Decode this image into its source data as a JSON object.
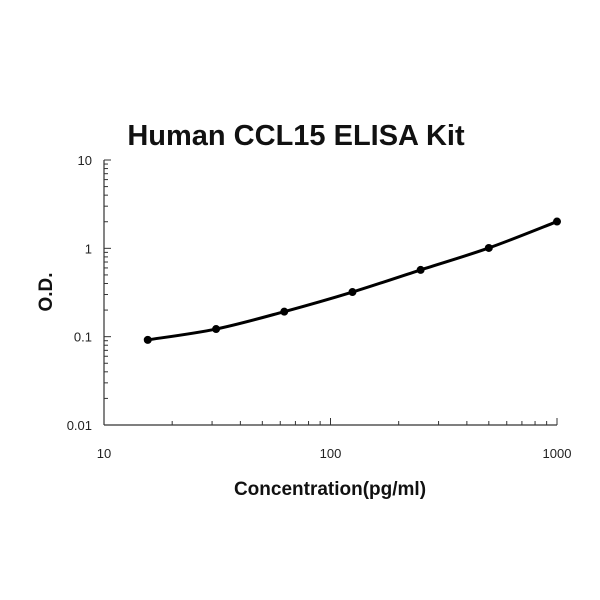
{
  "chart_data": {
    "type": "line",
    "title": "Human CCL15 ELISA Kit",
    "xlabel": "Concentration(pg/ml)",
    "ylabel": "O.D.",
    "x_scale": "log",
    "y_scale": "log",
    "xlim": [
      10,
      1000
    ],
    "ylim": [
      0.01,
      10
    ],
    "x_ticks": [
      "10",
      "100",
      "1000"
    ],
    "y_ticks": [
      "0.01",
      "0.1",
      "1",
      "10"
    ],
    "grid": false,
    "legend": "none",
    "series": [
      {
        "x": [
          15.6,
          31.25,
          62.5,
          125,
          250,
          500,
          1000
        ],
        "y": [
          0.092,
          0.122,
          0.192,
          0.32,
          0.57,
          1.01,
          2.01
        ],
        "color": "#000000"
      }
    ]
  }
}
